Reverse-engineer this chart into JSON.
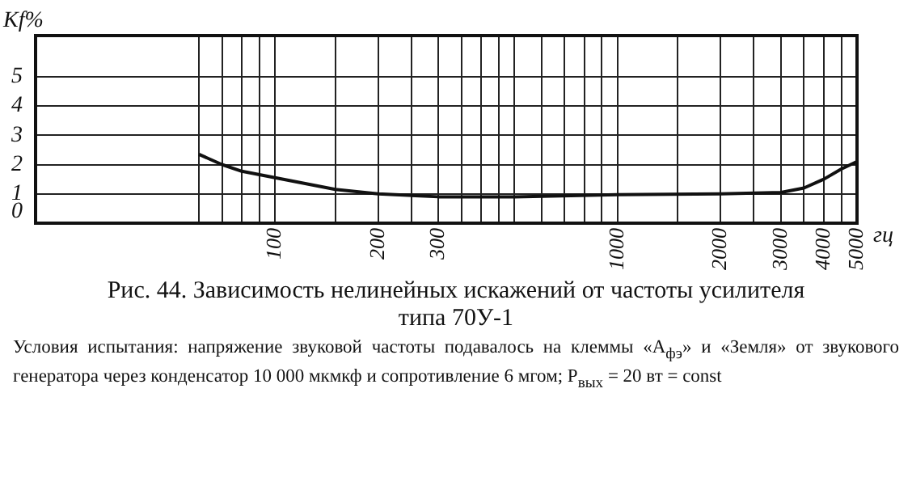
{
  "chart_data": {
    "type": "line",
    "title": "Рис. 44. Зависимость нелинейных искажений от частоты усилителя типа 70У-1",
    "xlabel": "гц",
    "ylabel": "Kf%",
    "annotations": [
      "Условия испытания: напряжение звуковой частоты подавалось на клеммы «А$_{фэ}$» и «Земля» от звукового генератора через конденсатор 10 000 мкмкф и сопротивление 6 мгом; P$_{вых}$ = 20 вт = const"
    ],
    "log": "x",
    "x": [
      60,
      70,
      80,
      100,
      150,
      200,
      300,
      500,
      1000,
      2000,
      3000,
      3500,
      4000,
      4500,
      5000
    ],
    "series": [
      {
        "color": "#111111",
        "values": [
          2.35,
          2.0,
          1.77,
          1.55,
          1.15,
          1.0,
          0.9,
          0.9,
          0.97,
          1.0,
          1.05,
          1.2,
          1.5,
          1.85,
          2.1
        ]
      }
    ],
    "xlim": [
      20,
      5000
    ],
    "xticks": [
      {
        "value": 60,
        "label": null
      },
      {
        "value": 70,
        "label": null
      },
      {
        "value": 80,
        "label": null
      },
      {
        "value": 90,
        "label": null
      },
      100,
      {
        "value": 150,
        "label": null
      },
      200,
      {
        "value": 250,
        "label": null
      },
      300,
      {
        "value": 350,
        "label": null
      },
      {
        "value": 400,
        "label": null
      },
      {
        "value": 450,
        "label": null
      },
      {
        "value": 500,
        "label": null
      },
      {
        "value": 600,
        "label": null
      },
      {
        "value": 700,
        "label": null
      },
      {
        "value": 800,
        "label": null
      },
      {
        "value": 900,
        "label": null
      },
      1000,
      {
        "value": 1500,
        "label": null
      },
      2000,
      {
        "value": 2500,
        "label": null
      },
      3000,
      {
        "value": 3500,
        "label": null
      },
      4000,
      {
        "value": 4500,
        "label": null
      },
      5000
    ],
    "ylim": [
      0,
      6.4
    ],
    "yticks": [
      0,
      1,
      2,
      3,
      4,
      5
    ],
    "grid": true,
    "legend": false,
    "marker": "none",
    "line_style": "solid"
  }
}
